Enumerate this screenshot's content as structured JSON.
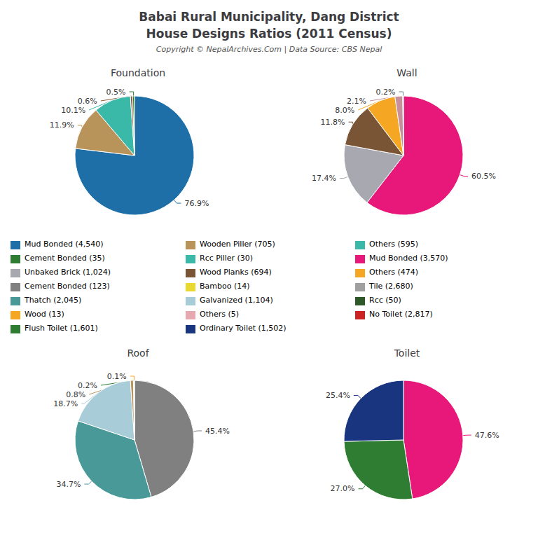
{
  "title": "Babai Rural Municipality, Dang District",
  "subtitle": "House Designs Ratios (2011 Census)",
  "annotations": [
    "Copyright © NepalArchives.Com | Data Source: CBS Nepal"
  ],
  "legend_entries": [
    [
      {
        "label": "Mud Bonded (4,540)",
        "color": "#1e6fa8"
      },
      {
        "label": "Cement Bonded (35)",
        "color": "#2e7d32"
      },
      {
        "label": "Unbaked Brick (1,024)",
        "color": "#a8a8b0"
      },
      {
        "label": "Cement Bonded (123)",
        "color": "#808080"
      },
      {
        "label": "Thatch (2,045)",
        "color": "#4a9999"
      },
      {
        "label": "Wood (13)",
        "color": "#f5a623"
      },
      {
        "label": "Flush Toilet (1,601)",
        "color": "#2e7d32"
      }
    ],
    [
      {
        "label": "Wooden Piller (705)",
        "color": "#b8945a"
      },
      {
        "label": "Rcc Piller (30)",
        "color": "#3ab8a8"
      },
      {
        "label": "Wood Planks (694)",
        "color": "#7a5535"
      },
      {
        "label": "Bamboo (14)",
        "color": "#e8d830"
      },
      {
        "label": "Galvanized (1,104)",
        "color": "#a8ccd8"
      },
      {
        "label": "Others (5)",
        "color": "#e8a8b0"
      },
      {
        "label": "Ordinary Toilet (1,502)",
        "color": "#1a3580"
      }
    ],
    [
      {
        "label": "Others (595)",
        "color": "#3ab8a8"
      },
      {
        "label": "Mud Bonded (3,570)",
        "color": "#e8177a"
      },
      {
        "label": "Others (474)",
        "color": "#f5a623"
      },
      {
        "label": "Tile (2,680)",
        "color": "#a0a0a0"
      },
      {
        "label": "Rcc (50)",
        "color": "#2e5828"
      },
      {
        "label": "No Toilet (2,817)",
        "color": "#cc2222"
      }
    ]
  ],
  "chart_data": [
    {
      "type": "pie",
      "title": "Foundation",
      "values": [
        76.9,
        11.9,
        10.1,
        0.6,
        0.5
      ],
      "value_labels": [
        "76.9%",
        "11.9%",
        "10.1%",
        "0.6%",
        "0.5%"
      ],
      "colors": [
        "#1e6fa8",
        "#b8945a",
        "#3ab8a8",
        "#8b5e3c",
        "#2e7d32"
      ],
      "data_labels": true
    },
    {
      "type": "pie",
      "title": "Wall",
      "values": [
        60.5,
        17.4,
        11.8,
        8.0,
        2.1,
        0.2
      ],
      "value_labels": [
        "60.5%",
        "17.4%",
        "11.8%",
        "8.0%",
        "2.1%",
        "0.2%"
      ],
      "colors": [
        "#e8177a",
        "#a8a8b0",
        "#7a5535",
        "#f5a623",
        "#c8909a",
        "#708090"
      ],
      "data_labels": true
    },
    {
      "type": "pie",
      "title": "Roof",
      "values": [
        45.4,
        34.7,
        18.7,
        0.8,
        0.2,
        0.1
      ],
      "value_labels": [
        "45.4%",
        "34.7%",
        "18.7%",
        "0.8%",
        "0.2%",
        "0.1%"
      ],
      "colors": [
        "#808080",
        "#4a9999",
        "#a8ccd8",
        "#b8945a",
        "#2e7d32",
        "#f5a623"
      ],
      "data_labels": true
    },
    {
      "type": "pie",
      "title": "Toilet",
      "values": [
        47.6,
        27.0,
        25.4
      ],
      "value_labels": [
        "47.6%",
        "27.0%",
        "25.4%"
      ],
      "colors": [
        "#e8177a",
        "#2e7d32",
        "#1a3580"
      ],
      "data_labels": true
    }
  ]
}
